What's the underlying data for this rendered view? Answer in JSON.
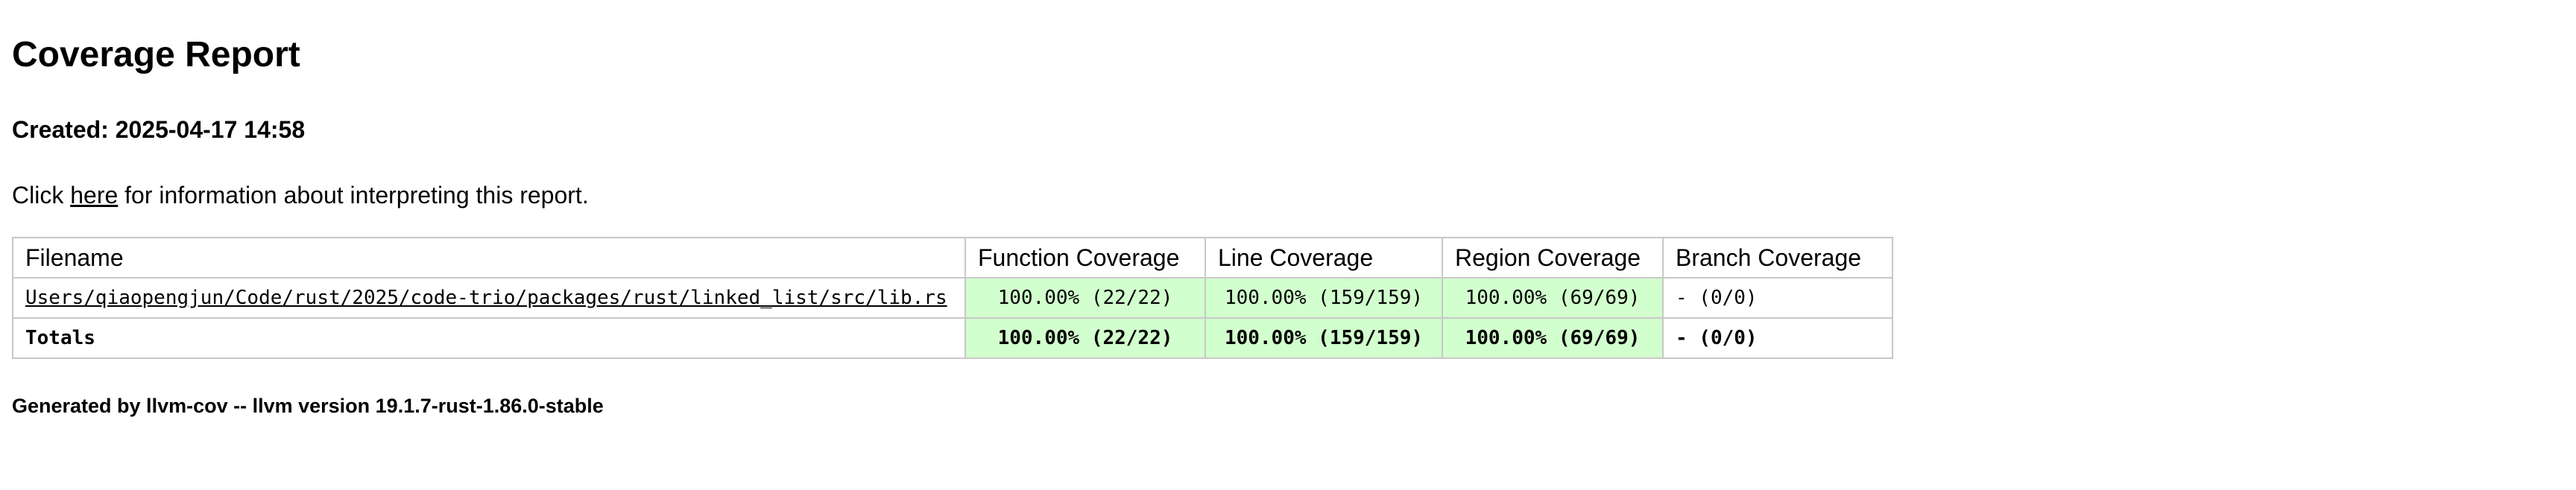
{
  "report": {
    "title": "Coverage Report",
    "created": "Created: 2025-04-17 14:58",
    "info_prefix": "Click ",
    "info_link": "here",
    "info_suffix": " for information about interpreting this report."
  },
  "table": {
    "headers": {
      "filename": "Filename",
      "function": "Function Coverage",
      "line": "Line Coverage",
      "region": "Region Coverage",
      "branch": "Branch Coverage"
    },
    "file_row": {
      "filename": "Users/qiaopengjun/Code/rust/2025/code-trio/packages/rust/linked_list/src/lib.rs",
      "function": "100.00% (22/22)",
      "line": "100.00% (159/159)",
      "region": "100.00% (69/69)",
      "branch": "- (0/0)"
    },
    "totals_row": {
      "filename": "Totals",
      "function": "100.00% (22/22)",
      "line": "100.00% (159/159)",
      "region": "100.00% (69/69)",
      "branch": "- (0/0)"
    }
  },
  "footer": {
    "text": "Generated by llvm-cov -- llvm version 19.1.7-rust-1.86.0-stable"
  },
  "colors": {
    "covered_bg": "#d2ffce",
    "border": "#c8c8c8"
  }
}
